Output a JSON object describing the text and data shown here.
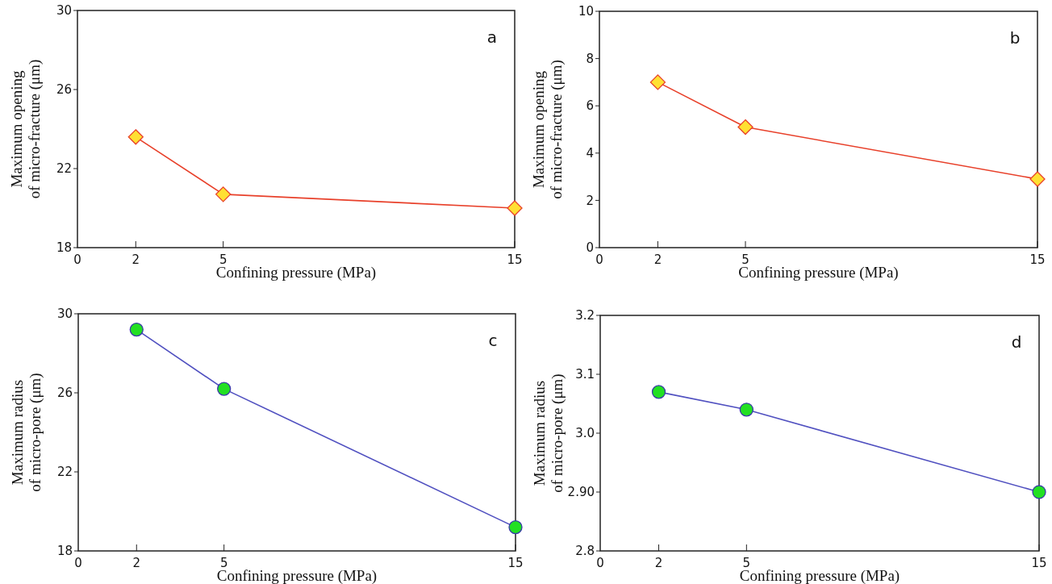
{
  "chart_data": [
    {
      "type": "line",
      "xlabel": "Confining pressure (MPa)",
      "ylabel": "Maximum opening\nof micro-fracture (μm)",
      "annotations": [
        "a"
      ],
      "x": [
        2,
        5,
        15
      ],
      "xlim": [
        0,
        15
      ],
      "xticks": [
        0,
        2,
        5,
        15
      ],
      "ylim": [
        18,
        30
      ],
      "yticks": [
        18,
        22,
        26,
        30
      ],
      "marker": "diamond",
      "series": [
        {
          "color": "#e8402a",
          "values": [
            23.6,
            20.7,
            20.0
          ]
        }
      ]
    },
    {
      "type": "line",
      "xlabel": "Confining pressure (MPa)",
      "ylabel": "Maximum opening\nof micro-fracture (μm)",
      "annotations": [
        "b"
      ],
      "x": [
        2,
        5,
        15
      ],
      "xlim": [
        0,
        15
      ],
      "xticks": [
        0,
        2,
        5,
        15
      ],
      "ylim": [
        0,
        10
      ],
      "yticks": [
        0,
        2,
        4,
        6,
        8,
        10
      ],
      "marker": "diamond",
      "series": [
        {
          "color": "#e8402a",
          "values": [
            7.0,
            5.1,
            2.9
          ]
        }
      ]
    },
    {
      "type": "line",
      "xlabel": "Confining pressure (MPa)",
      "ylabel": "Maximum radius\nof micro-pore (μm)",
      "annotations": [
        "c"
      ],
      "x": [
        2,
        5,
        15
      ],
      "xlim": [
        0,
        15
      ],
      "xticks": [
        0,
        2,
        5,
        15
      ],
      "ylim": [
        18,
        30
      ],
      "yticks": [
        18,
        22,
        26,
        30
      ],
      "marker": "circle",
      "series": [
        {
          "color": "#5050c0",
          "values": [
            29.2,
            26.2,
            19.2
          ]
        }
      ]
    },
    {
      "type": "line",
      "xlabel": "Confining pressure (MPa)",
      "ylabel": "Maximum radius\nof micro-pore (μm)",
      "annotations": [
        "d"
      ],
      "x": [
        2,
        5,
        15
      ],
      "xlim": [
        0,
        15
      ],
      "xticks": [
        0,
        2,
        5,
        15
      ],
      "ylim": [
        2.8,
        3.2
      ],
      "yticks": [
        {
          "value": 2.8,
          "label": "2.8"
        },
        {
          "value": 2.9,
          "label": "2.90"
        },
        {
          "value": 3.0,
          "label": "3.0"
        },
        {
          "value": 3.1,
          "label": "3.1"
        },
        {
          "value": 3.2,
          "label": "3.2"
        }
      ],
      "marker": "circle",
      "series": [
        {
          "color": "#5050c0",
          "values": [
            3.07,
            3.04,
            2.9
          ]
        }
      ]
    }
  ]
}
